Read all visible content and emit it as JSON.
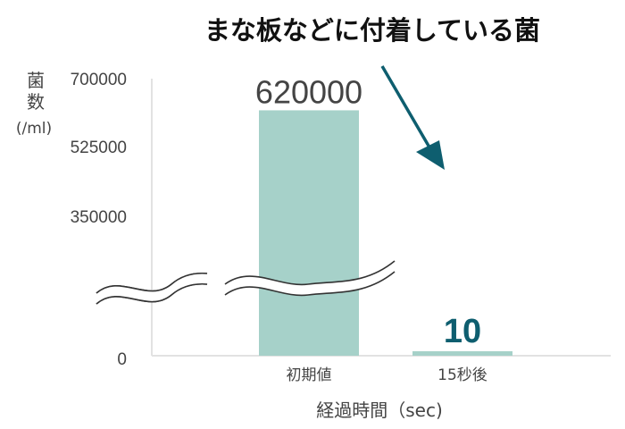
{
  "chart_data": {
    "type": "bar",
    "title": "まな板などに付着している菌",
    "ylabel_line1": "菌",
    "ylabel_line2": "数",
    "ylabel_unit": "(/ml)",
    "xlabel": "経過時間（sec)",
    "categories": [
      "初期値",
      "15秒後"
    ],
    "values": [
      620000,
      10
    ],
    "data_labels": [
      "620000",
      "10"
    ],
    "y_ticks": [
      "700000",
      "525000",
      "350000",
      "0"
    ],
    "y_tick_values": [
      700000,
      525000,
      350000,
      0
    ],
    "axis_break": true,
    "grid": false,
    "bar_color": "#a6d1c9",
    "accent_color": "#0e5e6f",
    "annotation": "down-arrow"
  }
}
